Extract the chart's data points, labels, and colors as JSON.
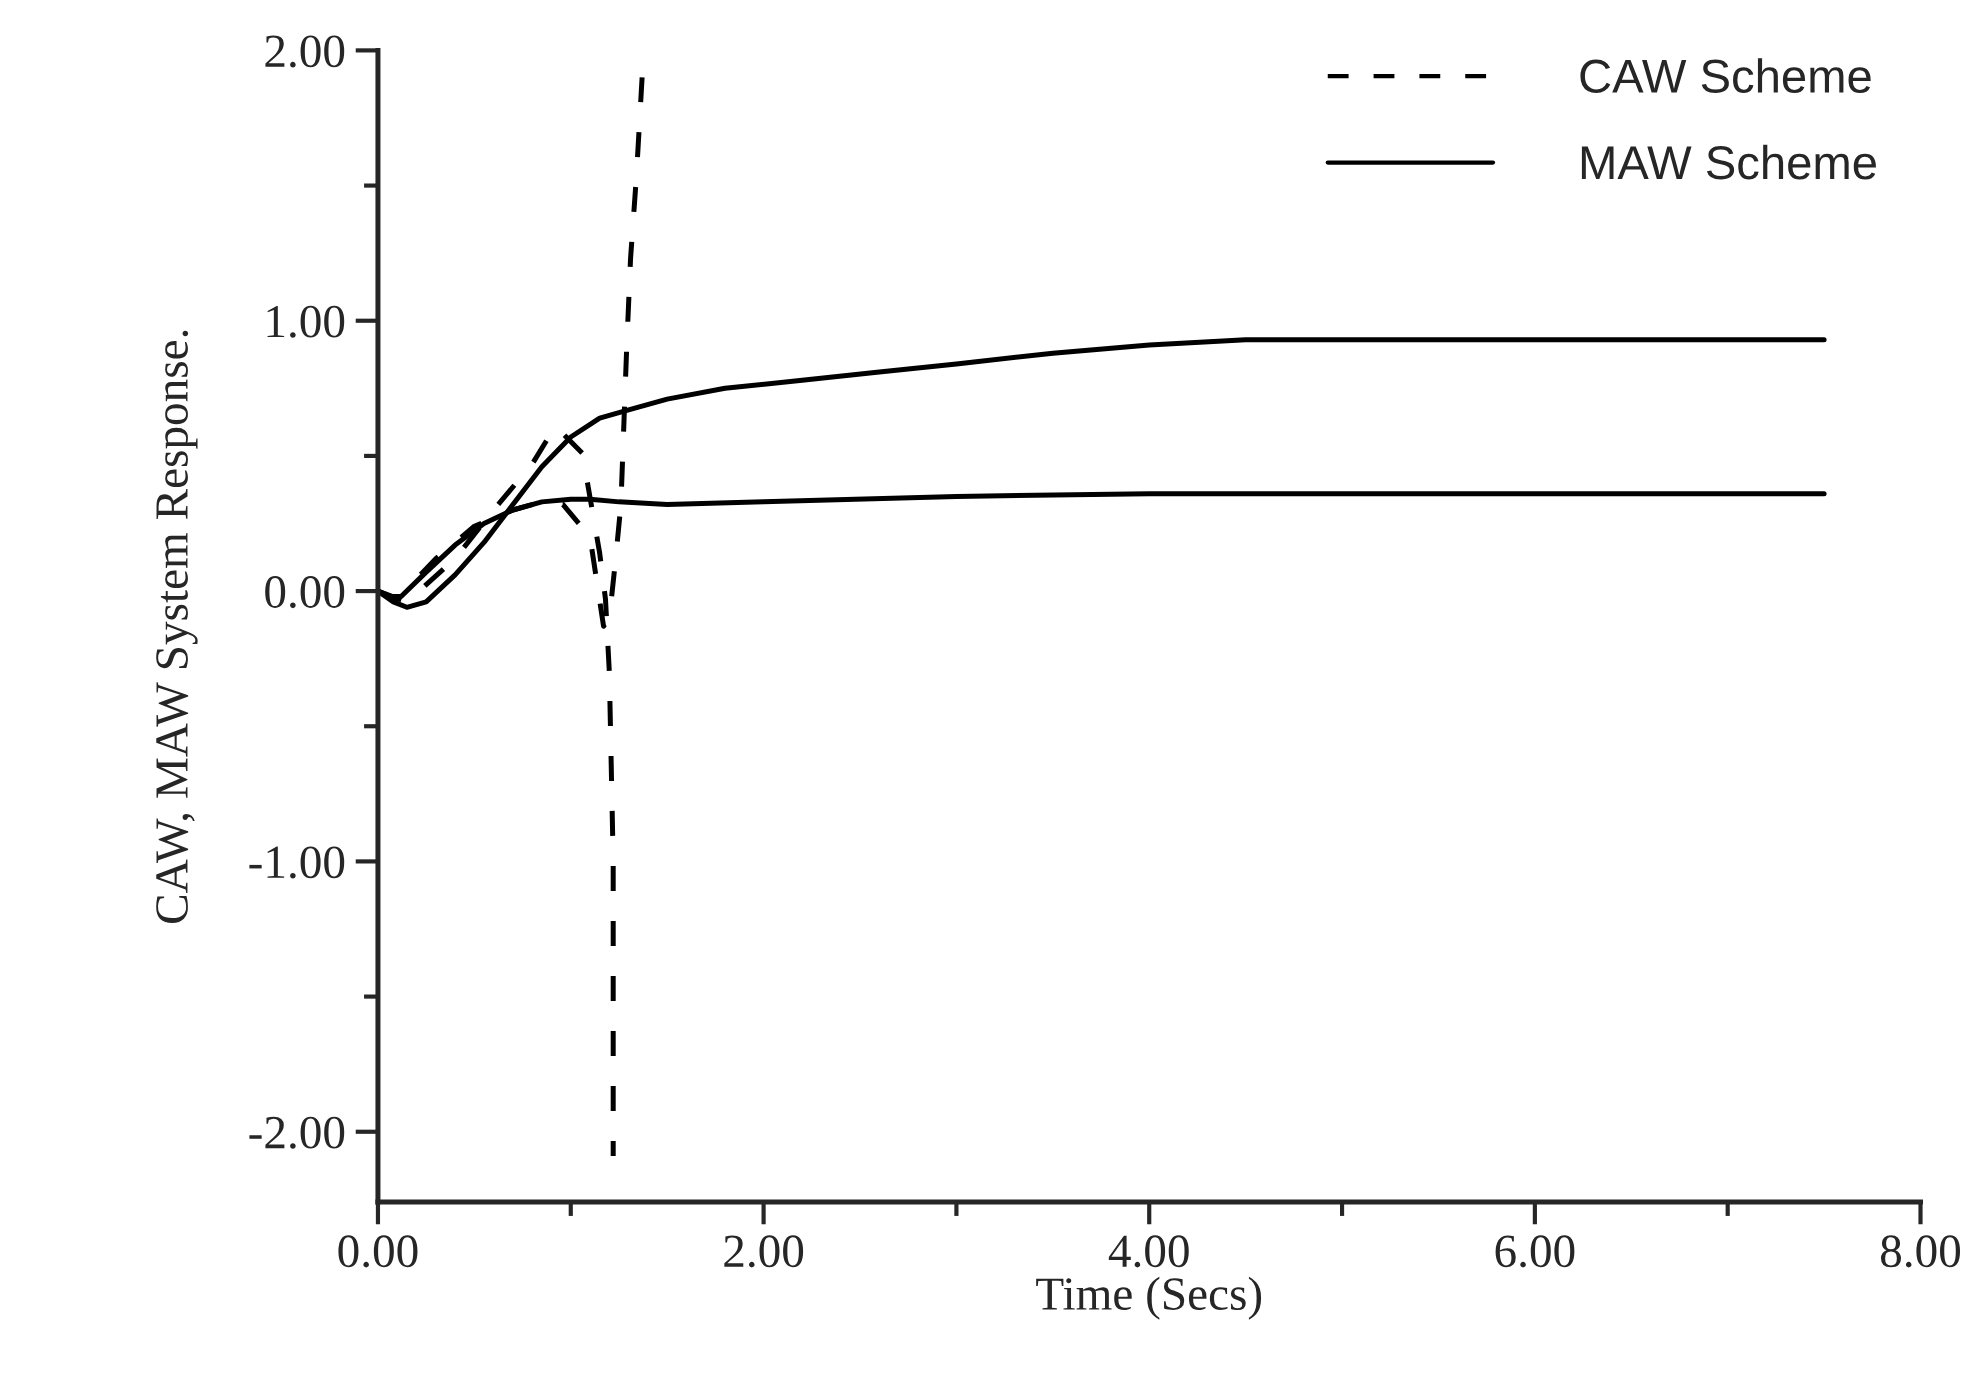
{
  "chart_data": {
    "type": "line",
    "xlabel": "Time (Secs)",
    "ylabel": "CAW, MAW System Response.",
    "xlim": [
      0,
      8
    ],
    "ylim": [
      -2.26,
      2.0
    ],
    "xticks": [
      {
        "value": 0,
        "label": "0.00"
      },
      {
        "value": 1,
        "label": null
      },
      {
        "value": 2,
        "label": "2.00"
      },
      {
        "value": 3,
        "label": null
      },
      {
        "value": 4,
        "label": "4.00"
      },
      {
        "value": 5,
        "label": null
      },
      {
        "value": 6,
        "label": "6.00"
      },
      {
        "value": 7,
        "label": null
      },
      {
        "value": 8,
        "label": "8.00"
      }
    ],
    "yticks": [
      {
        "value": -2,
        "label": "-2.00"
      },
      {
        "value": -1.5,
        "label": null
      },
      {
        "value": -1,
        "label": "-1.00"
      },
      {
        "value": -0.5,
        "label": null
      },
      {
        "value": 0,
        "label": "0.00"
      },
      {
        "value": 0.5,
        "label": null
      },
      {
        "value": 1,
        "label": "1.00"
      },
      {
        "value": 1.5,
        "label": null
      },
      {
        "value": 2,
        "label": "2.00"
      }
    ],
    "grid": false,
    "legend": "top right",
    "marker": "none",
    "series": [
      {
        "name": "CAW Scheme",
        "color": "#000000",
        "line_style": "dashed",
        "x": [
          0,
          0.15,
          0.4,
          0.6,
          0.8,
          0.92,
          1.06,
          1.15,
          1.18,
          1.2,
          1.22,
          1.22
        ],
        "values": [
          0,
          -0.04,
          0.12,
          0.3,
          0.47,
          0.61,
          0.51,
          0.14,
          -0.03,
          -0.3,
          -1.0,
          -2.09
        ]
      },
      {
        "color": "#000000",
        "line_style": "dashed",
        "x": [
          0,
          0.1,
          0.3,
          0.5,
          0.7,
          0.85,
          0.96,
          1.1,
          1.17,
          1.2,
          1.23,
          1.26,
          1.29,
          1.31,
          1.34,
          1.37
        ],
        "values": [
          0,
          -0.03,
          0.12,
          0.24,
          0.3,
          0.33,
          0.32,
          0.2,
          -0.13,
          -0.1,
          0.1,
          0.32,
          0.9,
          1.23,
          1.53,
          1.9
        ]
      },
      {
        "name": "MAW Scheme",
        "color": "#000000",
        "line_style": "solid",
        "x": [
          0,
          0.08,
          0.15,
          0.25,
          0.4,
          0.55,
          0.7,
          0.85,
          1.0,
          1.15,
          1.3,
          1.5,
          1.8,
          2.2,
          2.6,
          3.0,
          3.5,
          4.0,
          4.5,
          5.0,
          6.0,
          7.5
        ],
        "values": [
          0,
          -0.04,
          -0.06,
          -0.04,
          0.06,
          0.18,
          0.32,
          0.46,
          0.57,
          0.64,
          0.67,
          0.71,
          0.75,
          0.78,
          0.81,
          0.84,
          0.88,
          0.91,
          0.93,
          0.93,
          0.93,
          0.93
        ]
      },
      {
        "color": "#000000",
        "line_style": "solid",
        "x": [
          0,
          0.05,
          0.12,
          0.25,
          0.4,
          0.55,
          0.7,
          0.85,
          1.0,
          1.1,
          1.25,
          1.5,
          2.0,
          3.0,
          4.0,
          5.0,
          6.0,
          7.5
        ],
        "values": [
          0,
          -0.02,
          -0.02,
          0.07,
          0.17,
          0.25,
          0.3,
          0.33,
          0.34,
          0.34,
          0.33,
          0.32,
          0.33,
          0.35,
          0.36,
          0.36,
          0.36,
          0.36
        ]
      }
    ]
  }
}
